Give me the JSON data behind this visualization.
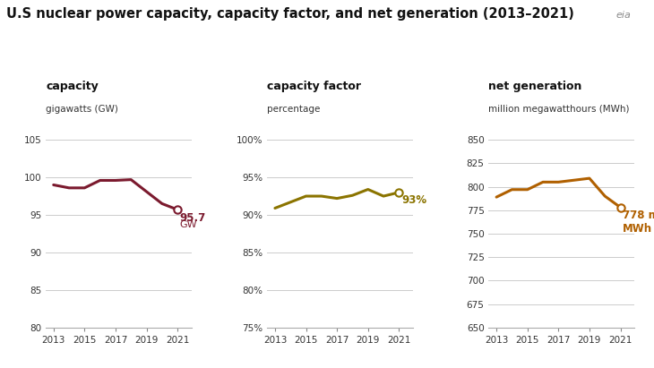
{
  "title": "U.S nuclear power capacity, capacity factor, and net generation (2013–2021)",
  "title_fontsize": 10.5,
  "background_color": "#ffffff",
  "years": [
    2013,
    2014,
    2015,
    2016,
    2017,
    2018,
    2019,
    2020,
    2021
  ],
  "capacity_label": "capacity",
  "capacity_sublabel": "gigawatts (GW)",
  "capacity_color": "#7b1a2e",
  "capacity_values": [
    99.0,
    98.6,
    98.6,
    99.6,
    99.6,
    99.7,
    98.1,
    96.5,
    95.7
  ],
  "capacity_ylim": [
    80,
    105
  ],
  "capacity_yticks": [
    80,
    85,
    90,
    95,
    100,
    105
  ],
  "capfactor_label": "capacity factor",
  "capfactor_sublabel": "percentage",
  "capfactor_color": "#8b7400",
  "capfactor_values": [
    90.9,
    91.7,
    92.5,
    92.5,
    92.2,
    92.6,
    93.4,
    92.5,
    93.0
  ],
  "capfactor_ylim": [
    75,
    100
  ],
  "capfactor_yticks": [
    75,
    80,
    85,
    90,
    95,
    100
  ],
  "capfactor_ytick_labels": [
    "75%",
    "80%",
    "85%",
    "90%",
    "95%",
    "100%"
  ],
  "netgen_label": "net generation",
  "netgen_sublabel": "million megawatthours (MWh)",
  "netgen_color": "#b06000",
  "netgen_values": [
    789,
    797,
    797,
    805,
    805,
    807,
    809,
    790,
    778
  ],
  "netgen_ylim": [
    650,
    850
  ],
  "netgen_yticks": [
    650,
    675,
    700,
    725,
    750,
    775,
    800,
    825,
    850
  ],
  "gridline_color": "#cccccc",
  "tick_fontsize": 7.5,
  "annotation_fontsize": 8.5,
  "label_fontsize": 9,
  "sublabel_fontsize": 7.5
}
